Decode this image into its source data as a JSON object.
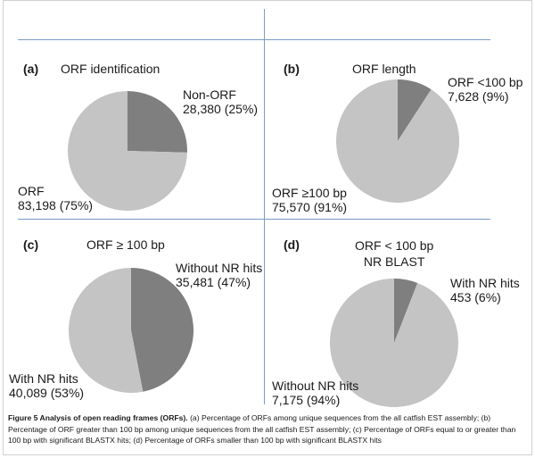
{
  "colors": {
    "dark": "#7f7f7f",
    "light": "#c4c4c4",
    "divider": "#7a9cc6"
  },
  "chart_data": [
    {
      "type": "pie",
      "letter": "(a)",
      "title": "ORF identification",
      "slices": [
        {
          "name": "Non-ORF",
          "value": 28380,
          "pct_label": "28,380 (25%)",
          "color": "#7f7f7f"
        },
        {
          "name": "ORF",
          "value": 83198,
          "pct_label": "83,198 (75%)",
          "color": "#c4c4c4"
        }
      ]
    },
    {
      "type": "pie",
      "letter": "(b)",
      "title": "ORF length",
      "slices": [
        {
          "name": "ORF <100 bp",
          "value": 7628,
          "pct_label": "7,628 (9%)",
          "color": "#7f7f7f"
        },
        {
          "name": "ORF ≥100 bp",
          "value": 75570,
          "pct_label": "75,570 (91%)",
          "color": "#c4c4c4"
        }
      ]
    },
    {
      "type": "pie",
      "letter": "(c)",
      "title": "ORF ≥ 100 bp",
      "slices": [
        {
          "name": "Without NR hits",
          "value": 35481,
          "pct_label": "35,481 (47%)",
          "color": "#7f7f7f"
        },
        {
          "name": "With NR hits",
          "value": 40089,
          "pct_label": "40,089 (53%)",
          "color": "#c4c4c4"
        }
      ]
    },
    {
      "type": "pie",
      "letter": "(d)",
      "title": "ORF < 100 bp",
      "subtitle": "NR BLAST",
      "slices": [
        {
          "name": "With NR hits",
          "value": 453,
          "pct_label": "453 (6%)",
          "color": "#7f7f7f"
        },
        {
          "name": "Without NR hits",
          "value": 7175,
          "pct_label": "7,175 (94%)",
          "color": "#c4c4c4"
        }
      ]
    }
  ],
  "caption": {
    "bold": "Figure 5 Analysis of open reading frames (ORFs).",
    "text": " (a) Percentage of ORFs among unique sequences from the all catfish EST assembly; (b) Percentage of ORF greater than 100 bp among unique sequences from the all catfish EST assembly; (c) Percentage of ORFs equal to or greater than 100 bp with significant BLASTX hits; (d) Percentage of ORFs smaller than 100 bp with significant BLASTX hits"
  }
}
